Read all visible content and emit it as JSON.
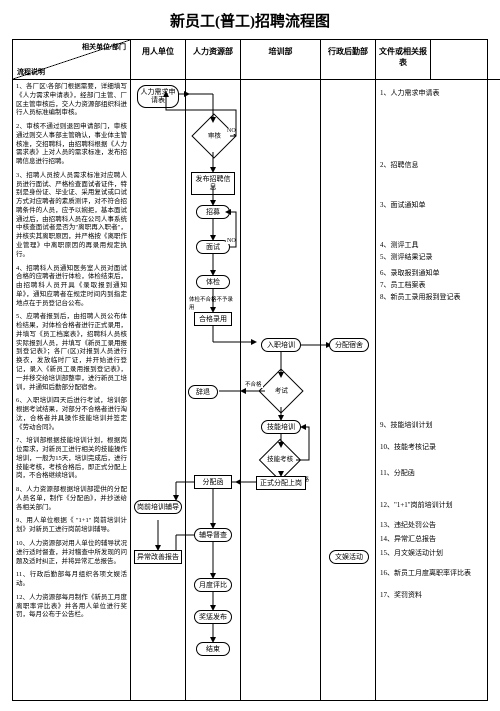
{
  "title": "新员工(普工)招聘流程图",
  "header": {
    "corner_top": "相关单位/部门",
    "corner_bottom": "流程说明",
    "cols": [
      "用人单位",
      "人力资源部",
      "培训部",
      "行政后勤部",
      "文件或相关报表"
    ]
  },
  "desc": [
    "1、各厂区\\各部门根据需要，详细填写《人力需求申请表》，经部门主管、厂区主管审核后，交人力资源部组织科进行人员标准编制审核。",
    "2、审核不通过则退回申请部门，审核通过则交人事部主管确认，事业体主管核准，交招聘科，由招聘科根据《人力需求表》上对人员的需求标准，发布招聘信息进行招聘。",
    "3、招聘人员按人员需求标准对应聘人员进行面试、严格检查面试者证件，特别是身份证、毕业证、采用复试或口试方式对应聘者的素质测评，对不符合招聘条件的人员，应予以婉拒，基本面试通过后，由招聘科人员在公司人事系统中核查面试者是否为\"离职再入职者\"，并核实其离职原因，并严格按《离职作业管理》中离职原因的再录用规定执行。",
    "4、招聘科人员通知医务室人员对面试合格的应聘者进行体检，体检结束后，由招聘科人员开具《录取报到通知单》，通知应聘者在规定时间内到指定地点在于员登记台公布。",
    "5、应聘者报到后，由招聘人员公布体检结果，对体检合格者进行正式录用，并填写《员工档案表》，招聘科人员核实际报到人员，并填写《新员工录用报到登记表》；各厂(区)对报到人员进行换衣，发放临时厂证，并开始进行登记，录入《新员工录用报到登记表》，一并移交给培训部整审，进行新员工培训，并通知后勤部分配宿舍。",
    "6、入职培训四天后进行考试，培训部根据考试结果，对部分不合格者进行淘汰，合格者并具操作技能培训并签定《劳动合同》。",
    "7、培训部根据技能培训计划，根据岗位需求，对新员工进行相关的技能操作培训，一般为15天，培训完成后，进行技能考核，考核合格后，即正式分配上岗，不合格继续培训。",
    "8、人力资源部根据培训部提供的分配人员名单，制作《分配函》，并抄送给各相关部门。",
    "9、用人单位根据《 \"1+1\" 岗前培训计划》对新员工进行岗前培训辅导。",
    "10、人力资源部对用人单位的辅导状况进行适时督查，并对稽查中所发现的问题及适时纠正，并将异常汇总报告。",
    "11、行政后勤部每月组织各项文娱活动。",
    "12、人力资源部每月制作《新员工月度离职率评比表》并各用人单位进行奖罚，每月公布于公告栏。"
  ],
  "files": [
    "1、人力需求申请表",
    "2、招聘信息",
    "3、面试通知单",
    "4、测评工具",
    "5、测评结果记录",
    "6、录取报到通知单",
    "7、员工档案表",
    "8、新员工录用报到登记表",
    "9、技能培训计划",
    "10、技能考核记录",
    "11、分配函",
    "12、\"1+1\"岗前培训计划",
    "13、违纪处罚公告",
    "14、异常汇总报告",
    "15、月文娱活动计划",
    "16、新员工月度离职率评比表",
    "17、奖罚资料"
  ],
  "nodes": {
    "n1": "人力需求申请表",
    "n2": "审核",
    "n3": "发布招聘信息",
    "n4": "招募",
    "n5": "面试",
    "n6": "体检",
    "n7": "合格录用",
    "n8": "入职培训",
    "n9": "考试",
    "n10": "辞退",
    "n11": "技能培训",
    "n12": "技能考核",
    "n13": "分配函",
    "n14": "正式分配上岗",
    "n15": "岗前培训辅导",
    "n16": "辅导督查",
    "n17": "异常改善报告",
    "n18": "月度评比",
    "n19": "奖惩发布",
    "n20": "结束",
    "n21": "分配宿舍",
    "n22": "文娱活动"
  },
  "labels": {
    "no1": "NO",
    "no2": "NO",
    "tihe": "体检不合格不予录用",
    "bujige": "不合格",
    "hege": "合格"
  },
  "filepos": [
    8,
    80,
    120,
    160,
    172,
    188,
    200,
    212,
    340,
    362,
    388,
    420,
    440,
    454,
    468,
    488,
    510
  ]
}
